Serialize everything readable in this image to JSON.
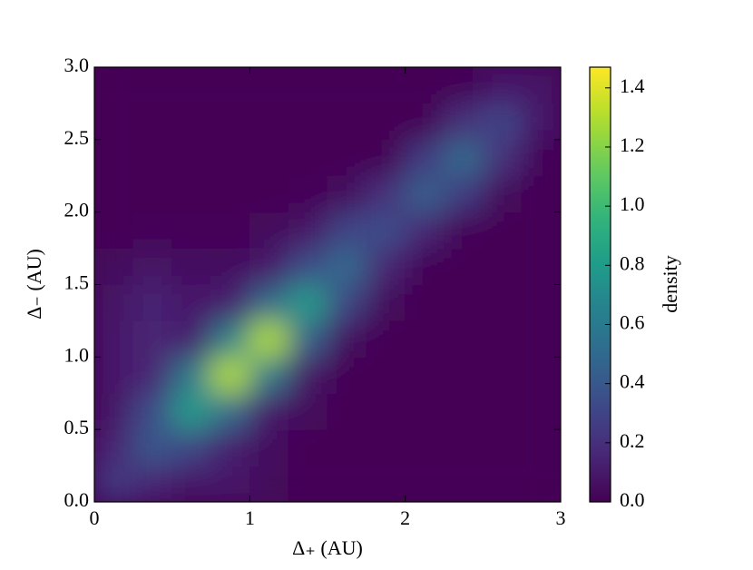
{
  "chart_data": {
    "type": "heatmap",
    "xlabel": "Δ₊ (AU)",
    "ylabel": "Δ₋ (AU)",
    "colorbar_label": "density",
    "colormap": "viridis",
    "xlim": [
      0,
      3
    ],
    "ylim": [
      0,
      3
    ],
    "zlim": [
      0,
      1.47
    ],
    "xticks": [
      0,
      1,
      2,
      3
    ],
    "yticks": [
      {
        "value": 0,
        "label": "0.0"
      },
      {
        "value": 0.5,
        "label": "0.5"
      },
      {
        "value": 1,
        "label": "1.0"
      },
      {
        "value": 1.5,
        "label": "1.5"
      },
      {
        "value": 2,
        "label": "2.0"
      },
      {
        "value": 2.5,
        "label": "2.5"
      },
      {
        "value": 3,
        "label": "3.0"
      }
    ],
    "zticks": [
      {
        "value": 0,
        "label": "0.0"
      },
      {
        "value": 0.2,
        "label": "0.2"
      },
      {
        "value": 0.4,
        "label": "0.4"
      },
      {
        "value": 0.6,
        "label": "0.6"
      },
      {
        "value": 0.8,
        "label": "0.8"
      },
      {
        "value": 1,
        "label": "1.0"
      },
      {
        "value": 1.2,
        "label": "1.2"
      },
      {
        "value": 1.4,
        "label": "1.4"
      }
    ],
    "z": [
      [
        0.25,
        0.15,
        0.08,
        0.1,
        0.03,
        0.01,
        0.01,
        0.01,
        0.01,
        0.01,
        0.01,
        0.01
      ],
      [
        0.15,
        0.4,
        0.3,
        0.12,
        0.05,
        0.01,
        0.01,
        0.01,
        0.01,
        0.01,
        0.01,
        0.01
      ],
      [
        0.08,
        0.35,
        0.8,
        0.5,
        0.1,
        0.03,
        0.01,
        0.01,
        0.01,
        0.01,
        0.01,
        0.01
      ],
      [
        0.1,
        0.15,
        0.6,
        1.3,
        0.6,
        0.08,
        0.01,
        0.01,
        0.01,
        0.01,
        0.01,
        0.01
      ],
      [
        0.1,
        0.15,
        0.12,
        0.65,
        1.3,
        0.45,
        0.05,
        0.01,
        0.01,
        0.01,
        0.01,
        0.01
      ],
      [
        0.08,
        0.14,
        0.1,
        0.12,
        0.5,
        0.8,
        0.3,
        0.03,
        0.01,
        0.01,
        0.01,
        0.01
      ],
      [
        0.04,
        0.08,
        0.06,
        0.05,
        0.1,
        0.35,
        0.5,
        0.15,
        0.01,
        0.01,
        0.01,
        0.01
      ],
      [
        0.01,
        0.02,
        0.02,
        0.02,
        0.03,
        0.08,
        0.3,
        0.35,
        0.15,
        0.02,
        0.01,
        0.01
      ],
      [
        0.01,
        0.01,
        0.01,
        0.01,
        0.01,
        0.02,
        0.05,
        0.2,
        0.45,
        0.25,
        0.03,
        0.01
      ],
      [
        0.01,
        0.01,
        0.01,
        0.01,
        0.01,
        0.01,
        0.01,
        0.01,
        0.25,
        0.5,
        0.2,
        0.02
      ],
      [
        0.01,
        0.01,
        0.01,
        0.01,
        0.01,
        0.01,
        0.01,
        0.01,
        0.01,
        0.2,
        0.3,
        0.1
      ],
      [
        0.01,
        0.01,
        0.01,
        0.01,
        0.01,
        0.01,
        0.01,
        0.01,
        0.01,
        0.01,
        0.1,
        0.08
      ]
    ]
  }
}
